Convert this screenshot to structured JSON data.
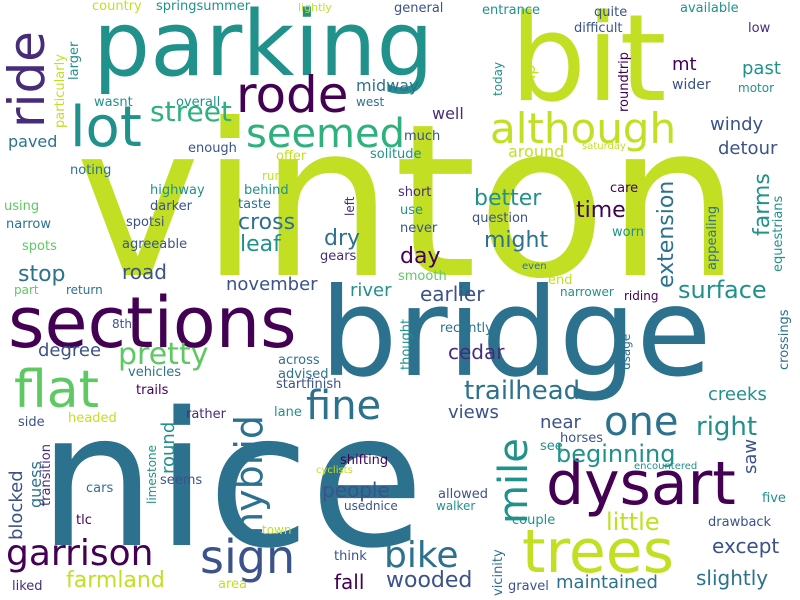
{
  "word_cloud": {
    "words": [
      {
        "text": "vinton",
        "color": "#c2df23"
      },
      {
        "text": "nice",
        "color": "#2c728e"
      },
      {
        "text": "bridge",
        "color": "#2c728e"
      },
      {
        "text": "bit",
        "color": "#c2df23"
      },
      {
        "text": "parking",
        "color": "#21918c"
      },
      {
        "text": "sections",
        "color": "#440154"
      },
      {
        "text": "dysart",
        "color": "#440154"
      },
      {
        "text": "trees",
        "color": "#c2df23"
      },
      {
        "text": "lot",
        "color": "#21918c"
      },
      {
        "text": "rode",
        "color": "#440154"
      },
      {
        "text": "seemed",
        "color": "#2db27d"
      },
      {
        "text": "although",
        "color": "#c2df23"
      },
      {
        "text": "ride",
        "color": "#472c7a"
      },
      {
        "text": "flat",
        "color": "#5ec962"
      },
      {
        "text": "sign",
        "color": "#3b528b"
      },
      {
        "text": "garrison",
        "color": "#440154"
      },
      {
        "text": "bike",
        "color": "#2c728e"
      },
      {
        "text": "one",
        "color": "#2c728e"
      },
      {
        "text": "fine",
        "color": "#2c728e"
      },
      {
        "text": "hybrid",
        "color": "#2c728e"
      },
      {
        "text": "mile",
        "color": "#21918c"
      },
      {
        "text": "trailhead",
        "color": "#2c728e"
      },
      {
        "text": "pretty",
        "color": "#5ec962"
      },
      {
        "text": "street",
        "color": "#2db27d"
      },
      {
        "text": "surface",
        "color": "#21918c"
      },
      {
        "text": "right",
        "color": "#21918c"
      },
      {
        "text": "beginning",
        "color": "#21918c"
      },
      {
        "text": "little",
        "color": "#c2df23"
      },
      {
        "text": "farmland",
        "color": "#c2df23"
      },
      {
        "text": "wooded",
        "color": "#3b528b"
      },
      {
        "text": "maintained",
        "color": "#2c728e"
      },
      {
        "text": "slightly",
        "color": "#2c728e"
      },
      {
        "text": "except",
        "color": "#3b528b"
      },
      {
        "text": "fall",
        "color": "#440154"
      },
      {
        "text": "people",
        "color": "#3b528b"
      },
      {
        "text": "extension",
        "color": "#2c728e"
      },
      {
        "text": "farms",
        "color": "#21918c"
      },
      {
        "text": "time",
        "color": "#440154"
      },
      {
        "text": "might",
        "color": "#2c728e"
      },
      {
        "text": "better",
        "color": "#21918c"
      },
      {
        "text": "cross",
        "color": "#2c728e"
      },
      {
        "text": "leaf",
        "color": "#21918c"
      },
      {
        "text": "dry",
        "color": "#2c728e"
      },
      {
        "text": "day",
        "color": "#440154"
      },
      {
        "text": "stop",
        "color": "#2c728e"
      },
      {
        "text": "road",
        "color": "#3b528b"
      },
      {
        "text": "november",
        "color": "#3b528b"
      },
      {
        "text": "river",
        "color": "#21918c"
      },
      {
        "text": "earlier",
        "color": "#3b528b"
      },
      {
        "text": "cedar",
        "color": "#472c7a"
      },
      {
        "text": "degree",
        "color": "#3b528b"
      },
      {
        "text": "views",
        "color": "#3b528b"
      },
      {
        "text": "near",
        "color": "#3b528b"
      },
      {
        "text": "creeks",
        "color": "#21918c"
      },
      {
        "text": "saw",
        "color": "#3b528b"
      },
      {
        "text": "round",
        "color": "#21918c"
      },
      {
        "text": "guess",
        "color": "#2c728e"
      },
      {
        "text": "blocked",
        "color": "#3b528b"
      },
      {
        "text": "windy",
        "color": "#3b528b"
      },
      {
        "text": "detour",
        "color": "#3b528b"
      },
      {
        "text": "past",
        "color": "#21918c"
      },
      {
        "text": "mt",
        "color": "#440154"
      },
      {
        "text": "wider",
        "color": "#3b528b"
      },
      {
        "text": "motor",
        "color": "#21918c"
      },
      {
        "text": "trip",
        "color": "#c2df23"
      },
      {
        "text": "around",
        "color": "#c2df23"
      },
      {
        "text": "well",
        "color": "#472c7a"
      },
      {
        "text": "midway",
        "color": "#2c728e"
      },
      {
        "text": "west",
        "color": "#2c728e"
      },
      {
        "text": "paved",
        "color": "#2c728e"
      },
      {
        "text": "much",
        "color": "#3b528b"
      },
      {
        "text": "solitude",
        "color": "#21918c"
      },
      {
        "text": "offer",
        "color": "#c2df23"
      },
      {
        "text": "enough",
        "color": "#3b528b"
      },
      {
        "text": "overall",
        "color": "#21918c"
      },
      {
        "text": "wasnt",
        "color": "#21918c"
      },
      {
        "text": "larger",
        "color": "#21918c"
      },
      {
        "text": "particularly",
        "color": "#c2df23"
      },
      {
        "text": "country",
        "color": "#c2df23"
      },
      {
        "text": "springsummer",
        "color": "#21918c"
      },
      {
        "text": "lightly",
        "color": "#c2df23"
      },
      {
        "text": "general",
        "color": "#3b528b"
      },
      {
        "text": "entrance",
        "color": "#21918c"
      },
      {
        "text": "quite",
        "color": "#3b528b"
      },
      {
        "text": "difficult",
        "color": "#3b528b"
      },
      {
        "text": "available",
        "color": "#21918c"
      },
      {
        "text": "low",
        "color": "#472c7a"
      },
      {
        "text": "today",
        "color": "#21918c"
      },
      {
        "text": "roundtrip",
        "color": "#440154"
      },
      {
        "text": "saturday",
        "color": "#c2df23"
      },
      {
        "text": "noting",
        "color": "#2c728e"
      },
      {
        "text": "highway",
        "color": "#21918c"
      },
      {
        "text": "behind",
        "color": "#21918c"
      },
      {
        "text": "runs",
        "color": "#c2df23"
      },
      {
        "text": "darker",
        "color": "#3b528b"
      },
      {
        "text": "taste",
        "color": "#2c728e"
      },
      {
        "text": "spotsi",
        "color": "#3b528b"
      },
      {
        "text": "using",
        "color": "#5ec962"
      },
      {
        "text": "narrow",
        "color": "#2c728e"
      },
      {
        "text": "agreeable",
        "color": "#3b528b"
      },
      {
        "text": "spots",
        "color": "#5ec962"
      },
      {
        "text": "left",
        "color": "#472c7a"
      },
      {
        "text": "short",
        "color": "#472c7a"
      },
      {
        "text": "use",
        "color": "#21918c"
      },
      {
        "text": "never",
        "color": "#3b528b"
      },
      {
        "text": "question",
        "color": "#3b528b"
      },
      {
        "text": "care",
        "color": "#440154"
      },
      {
        "text": "worn",
        "color": "#21918c"
      },
      {
        "text": "appealing",
        "color": "#2c728e"
      },
      {
        "text": "equestrians",
        "color": "#21918c"
      },
      {
        "text": "gears",
        "color": "#472c7a"
      },
      {
        "text": "smooth",
        "color": "#5ec962"
      },
      {
        "text": "even",
        "color": "#2c728e"
      },
      {
        "text": "end",
        "color": "#c2df23"
      },
      {
        "text": "narrower",
        "color": "#21918c"
      },
      {
        "text": "riding",
        "color": "#440154"
      },
      {
        "text": "crossings",
        "color": "#2c728e"
      },
      {
        "text": "part",
        "color": "#5ec962"
      },
      {
        "text": "return",
        "color": "#2c728e"
      },
      {
        "text": "8th",
        "color": "#3b528b"
      },
      {
        "text": "thought",
        "color": "#21918c"
      },
      {
        "text": "recently",
        "color": "#2c728e"
      },
      {
        "text": "usage",
        "color": "#2c728e"
      },
      {
        "text": "vehicles",
        "color": "#2c728e"
      },
      {
        "text": "across",
        "color": "#2c728e"
      },
      {
        "text": "advised",
        "color": "#2c728e"
      },
      {
        "text": "trails",
        "color": "#440154"
      },
      {
        "text": "startfinish",
        "color": "#3b528b"
      },
      {
        "text": "side",
        "color": "#3b528b"
      },
      {
        "text": "rather",
        "color": "#472c7a"
      },
      {
        "text": "lane",
        "color": "#21918c"
      },
      {
        "text": "horses",
        "color": "#3b528b"
      },
      {
        "text": "transition",
        "color": "#472c7a"
      },
      {
        "text": "headed",
        "color": "#c2df23"
      },
      {
        "text": "limestone",
        "color": "#21918c"
      },
      {
        "text": "shifting",
        "color": "#440154"
      },
      {
        "text": "see",
        "color": "#21918c"
      },
      {
        "text": "cyclists",
        "color": "#c2df23"
      },
      {
        "text": "usednice",
        "color": "#3b528b"
      },
      {
        "text": "encountered",
        "color": "#21918c"
      },
      {
        "text": "seems",
        "color": "#3b528b"
      },
      {
        "text": "cars",
        "color": "#2c728e"
      },
      {
        "text": "allowed",
        "color": "#3b528b"
      },
      {
        "text": "walker",
        "color": "#21918c"
      },
      {
        "text": "drawback",
        "color": "#3b528b"
      },
      {
        "text": "five",
        "color": "#21918c"
      },
      {
        "text": "tlc",
        "color": "#440154"
      },
      {
        "text": "couple",
        "color": "#21918c"
      },
      {
        "text": "town",
        "color": "#c2df23"
      },
      {
        "text": "vicinity",
        "color": "#2c728e"
      },
      {
        "text": "think",
        "color": "#3b528b"
      },
      {
        "text": "liked",
        "color": "#472c7a"
      },
      {
        "text": "area",
        "color": "#c2df23"
      },
      {
        "text": "gravel",
        "color": "#3b528b"
      }
    ]
  }
}
